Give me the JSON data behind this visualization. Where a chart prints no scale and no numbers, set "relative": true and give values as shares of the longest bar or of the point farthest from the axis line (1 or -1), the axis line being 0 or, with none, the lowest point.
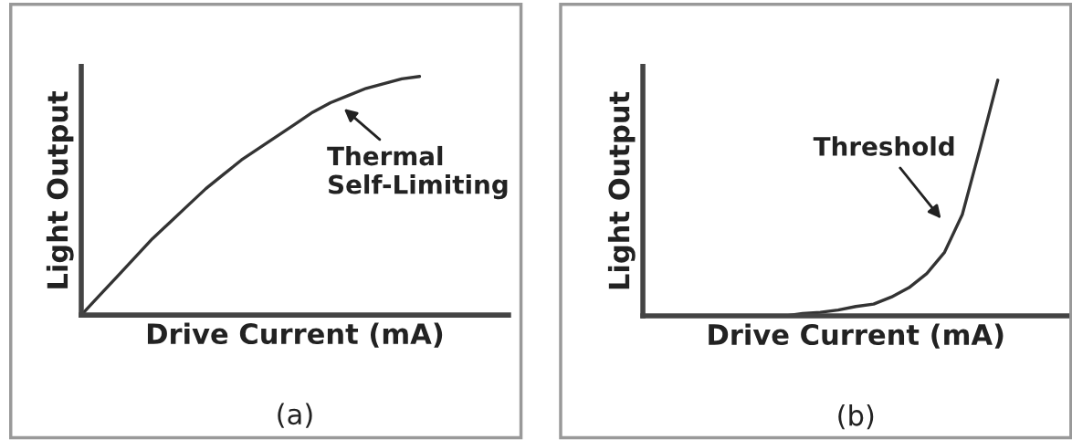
{
  "chart_data": [
    {
      "type": "line",
      "title": "(a)",
      "xlabel": "Drive Current (mA)",
      "ylabel": "Light Output",
      "relative": true,
      "categories": [
        null,
        null,
        null,
        null,
        null,
        null,
        null,
        null,
        null,
        null,
        null,
        null,
        null,
        null,
        null,
        null,
        null,
        null,
        null,
        null,
        null,
        null,
        null,
        null,
        null
      ],
      "series": [
        {
          "color": "#333333",
          "values": [
            0,
            0.08,
            0.16,
            0.24,
            0.32,
            0.39,
            0.46,
            0.53,
            0.59,
            0.65,
            0.7,
            0.75,
            0.8,
            0.85,
            0.89,
            0.92,
            0.95,
            0.97,
            0.99,
            1.0,
            null,
            null,
            null,
            null,
            null
          ]
        }
      ],
      "annotations": [
        "Thermal\nSelf-Limiting"
      ],
      "tick_labels": false
    },
    {
      "type": "line",
      "title": "(b)",
      "xlabel": "Drive Current (mA)",
      "ylabel": "Light Output",
      "relative": true,
      "categories": [
        null,
        null,
        null,
        null,
        null,
        null,
        null,
        null,
        null,
        null,
        null,
        null,
        null,
        null,
        null,
        null,
        null,
        null,
        null,
        null,
        null,
        null,
        null,
        null,
        null
      ],
      "series": [
        {
          "color": "#333333",
          "values": [
            0,
            0,
            0,
            0,
            0,
            0,
            0,
            0,
            0,
            0.01,
            0.015,
            0.025,
            0.04,
            0.05,
            0.08,
            0.12,
            0.18,
            0.27,
            0.43,
            0.71,
            1.0,
            null,
            null,
            null,
            null
          ]
        }
      ],
      "annotations": [
        "Threshold"
      ],
      "tick_labels": false
    }
  ]
}
